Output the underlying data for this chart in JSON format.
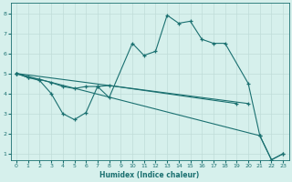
{
  "xlabel": "Humidex (Indice chaleur)",
  "background_color": "#d6f0ec",
  "grid_color": "#c0dcd8",
  "line_color": "#1a7070",
  "xlim": [
    -0.5,
    23.5
  ],
  "ylim": [
    0.7,
    8.5
  ],
  "yticks": [
    1,
    2,
    3,
    4,
    5,
    6,
    7,
    8
  ],
  "xticks": [
    0,
    1,
    2,
    3,
    4,
    5,
    6,
    7,
    8,
    9,
    10,
    11,
    12,
    13,
    14,
    15,
    16,
    17,
    18,
    19,
    20,
    21,
    22,
    23
  ],
  "series": [
    {
      "x": [
        0,
        1,
        2,
        3,
        4,
        5,
        6,
        7,
        8,
        10,
        11,
        12,
        13,
        14,
        15,
        16,
        17,
        18,
        20,
        21,
        22,
        23
      ],
      "y": [
        5.0,
        4.8,
        4.65,
        4.0,
        3.0,
        2.7,
        3.05,
        4.35,
        3.8,
        6.5,
        5.9,
        6.1,
        7.9,
        7.5,
        7.6,
        6.7,
        6.5,
        6.5,
        4.5,
        1.9,
        0.7,
        1.0
      ]
    },
    {
      "x": [
        0,
        1,
        2,
        3,
        4,
        5,
        6,
        7,
        8,
        19
      ],
      "y": [
        5.0,
        4.8,
        4.7,
        4.55,
        4.35,
        4.25,
        4.35,
        4.35,
        4.4,
        3.5
      ]
    },
    {
      "x": [
        0,
        20
      ],
      "y": [
        5.0,
        3.5
      ]
    },
    {
      "x": [
        0,
        21,
        22,
        23
      ],
      "y": [
        5.0,
        1.9,
        0.7,
        1.0
      ]
    }
  ]
}
